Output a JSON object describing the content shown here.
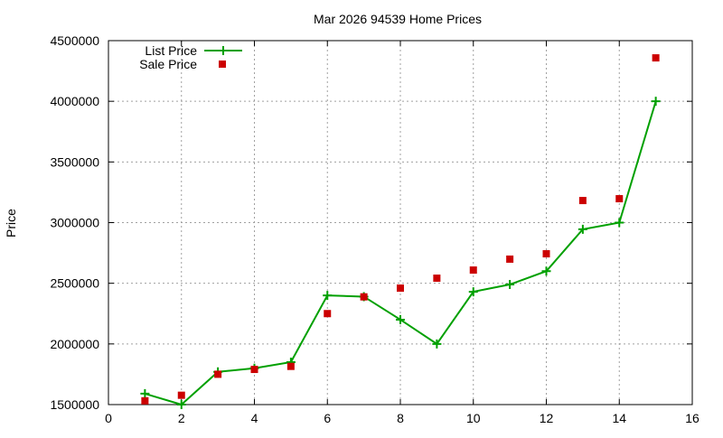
{
  "chart_data": {
    "type": "line",
    "title": "Mar 2026 94539 Home Prices",
    "xlabel": "",
    "ylabel": "Price",
    "xlim": [
      0,
      16
    ],
    "ylim": [
      1500000,
      4500000
    ],
    "xticks": [
      0,
      2,
      4,
      6,
      8,
      10,
      12,
      14,
      16
    ],
    "yticks": [
      1500000,
      2000000,
      2500000,
      3000000,
      3500000,
      4000000,
      4500000
    ],
    "grid": true,
    "legend_position": "top-left",
    "x": [
      1,
      2,
      3,
      4,
      5,
      6,
      7,
      8,
      9,
      10,
      11,
      12,
      13,
      14,
      15
    ],
    "series": [
      {
        "name": "List Price",
        "style": "linespoints",
        "color": "#00a000",
        "values": [
          1590000,
          1500000,
          1770000,
          1800000,
          1850000,
          2400000,
          2390000,
          2200000,
          2000000,
          2430000,
          2490000,
          2600000,
          2945000,
          3000000,
          4000000
        ]
      },
      {
        "name": "Sale Price",
        "style": "points",
        "color": "#cc0000",
        "values": [
          1531000,
          1577000,
          1750000,
          1790000,
          1815000,
          2250000,
          2388000,
          2460000,
          2542000,
          2609000,
          2699000,
          2743000,
          3182000,
          3197000,
          4358000
        ]
      }
    ]
  }
}
